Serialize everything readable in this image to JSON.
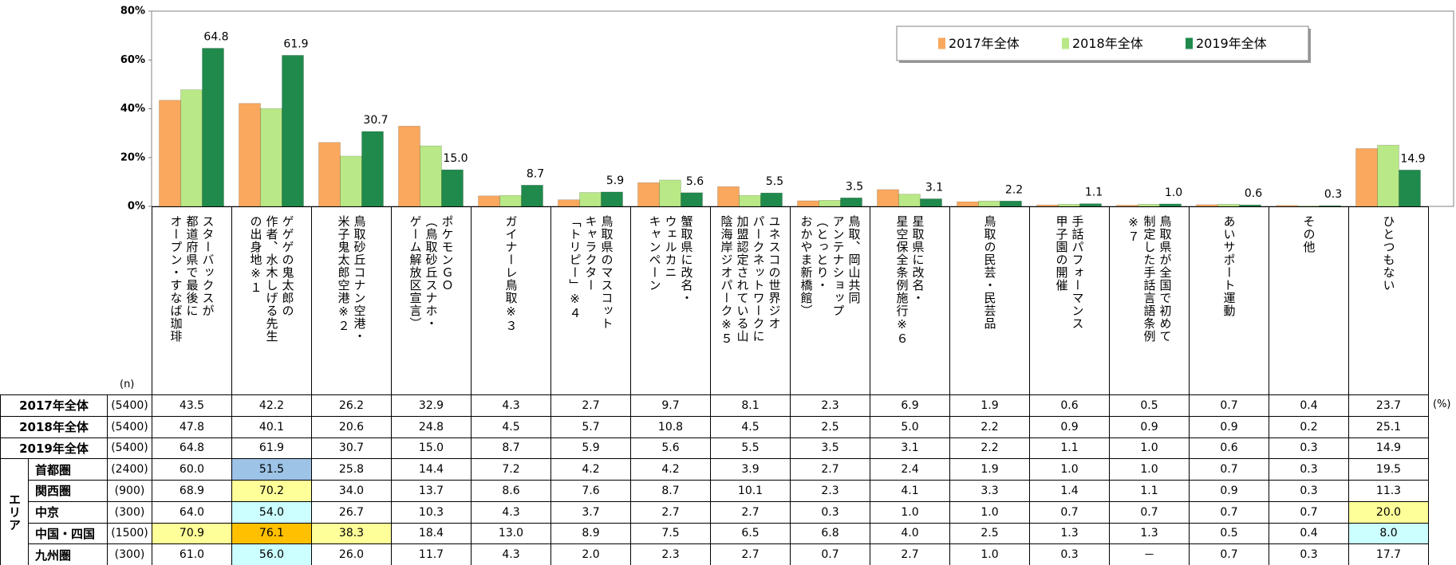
{
  "chart_data": {
    "type": "bar",
    "categories": [
      "スターバックスが\n都道府県で最後に\nオープン・すなば珈琲",
      "ゲゲゲの鬼太郎の\n作者、水木しげる先生\nの出身地※１",
      "鳥取砂丘コナン空港・\n米子鬼太郎空港※２",
      "ポケモンＧＯ\n（鳥取砂丘スナホ・\nゲーム解放区宣言）",
      "ガイナーレ鳥取※３",
      "鳥取県のマスコット\nキャラクター\n「トリピー」※４",
      "蟹取県に改名・\nウェルカニ\nキャンペーン",
      "ユネスコの世界ジオ\nパークネットワークに\n加盟認定されている山\n陰海岸ジオパーク※５",
      "鳥取、岡山共同\nアンテナショップ\n（とっとり・\nおかやま新橋館）",
      "星取県に改名・\n星空保全条例施行※６",
      "鳥取の民芸・民芸品",
      "手話パフォーマンス\n甲子園の開催",
      "鳥取県が全国で初めて\n制定した手話言語条例\n※７",
      "あいサポート運動",
      "その他",
      "ひとつもない"
    ],
    "series": [
      {
        "name": "2017年全体",
        "color": "#f9a85e",
        "show_value_labels": false,
        "values": [
          43.5,
          42.2,
          26.2,
          32.9,
          4.3,
          2.7,
          9.7,
          8.1,
          2.3,
          6.9,
          1.9,
          0.6,
          0.5,
          0.7,
          0.4,
          23.7
        ],
        "value_labels": [
          "43.5",
          "42.2",
          "26.2",
          "32.9",
          "4.3",
          "2.7",
          "9.7",
          "8.1",
          "2.3",
          "6.9",
          "1.9",
          "0.6",
          "0.5",
          "0.7",
          "0.4",
          "23.7"
        ]
      },
      {
        "name": "2018年全体",
        "color": "#b9e887",
        "show_value_labels": false,
        "values": [
          47.8,
          40.1,
          20.6,
          24.8,
          4.5,
          5.7,
          10.8,
          4.5,
          2.5,
          5.0,
          2.2,
          0.9,
          0.9,
          0.9,
          0.2,
          25.1
        ],
        "value_labels": [
          "47.8",
          "40.1",
          "20.6",
          "24.8",
          "4.5",
          "5.7",
          "10.8",
          "4.5",
          "2.5",
          "5.0",
          "2.2",
          "0.9",
          "0.9",
          "0.9",
          "0.2",
          "25.1"
        ]
      },
      {
        "name": "2019年全体",
        "color": "#1f8a4c",
        "show_value_labels": true,
        "values": [
          64.8,
          61.9,
          30.7,
          15.0,
          8.7,
          5.9,
          5.6,
          5.5,
          3.5,
          3.1,
          2.2,
          1.1,
          1.0,
          0.6,
          0.3,
          14.9
        ],
        "value_labels": [
          "64.8",
          "61.9",
          "30.7",
          "15.0",
          "8.7",
          "5.9",
          "5.6",
          "5.5",
          "3.5",
          "3.1",
          "2.2",
          "1.1",
          "1.0",
          "0.6",
          "0.3",
          "14.9"
        ]
      }
    ],
    "ylim": [
      0,
      80
    ],
    "yticks": [
      {
        "value": 0,
        "label": "0%"
      },
      {
        "value": 20,
        "label": "20%"
      },
      {
        "value": 40,
        "label": "40%"
      },
      {
        "value": 60,
        "label": "60%"
      },
      {
        "value": 80,
        "label": "80%"
      }
    ],
    "grid": false,
    "legend": "top-right"
  },
  "table": {
    "n_header": "(n)",
    "unit": "(%)",
    "summary_n": [
      "(5400)",
      "(5400)",
      "(5400)"
    ],
    "group_label": "エリア",
    "rows": [
      {
        "name": "首都圏",
        "n": "(2400)",
        "cells": [
          "60.0",
          "51.5",
          "25.8",
          "14.4",
          "7.2",
          "4.2",
          "4.2",
          "3.9",
          "2.7",
          "2.4",
          "1.9",
          "1.0",
          "1.0",
          "0.7",
          "0.3",
          "19.5"
        ],
        "cell_colors": [
          null,
          "#9dc3e6",
          null,
          null,
          null,
          null,
          null,
          null,
          null,
          null,
          null,
          null,
          null,
          null,
          null,
          null
        ]
      },
      {
        "name": "関西圏",
        "n": "(900)",
        "cells": [
          "68.9",
          "70.2",
          "34.0",
          "13.7",
          "8.6",
          "7.6",
          "8.7",
          "10.1",
          "2.3",
          "4.1",
          "3.3",
          "1.4",
          "1.1",
          "0.9",
          "0.3",
          "11.3"
        ],
        "cell_colors": [
          null,
          "#ffff99",
          null,
          null,
          null,
          null,
          null,
          null,
          null,
          null,
          null,
          null,
          null,
          null,
          null,
          null
        ]
      },
      {
        "name": "中京",
        "n": "(300)",
        "cells": [
          "64.0",
          "54.0",
          "26.7",
          "10.3",
          "4.3",
          "3.7",
          "2.7",
          "2.7",
          "0.3",
          "1.0",
          "1.0",
          "0.7",
          "0.7",
          "0.7",
          "0.7",
          "20.0"
        ],
        "cell_colors": [
          null,
          "#ccffff",
          null,
          null,
          null,
          null,
          null,
          null,
          null,
          null,
          null,
          null,
          null,
          null,
          null,
          "#ffff99"
        ]
      },
      {
        "name": "中国・四国",
        "n": "(1500)",
        "cells": [
          "70.9",
          "76.1",
          "38.3",
          "18.4",
          "13.0",
          "8.9",
          "7.5",
          "6.5",
          "6.8",
          "4.0",
          "2.5",
          "1.3",
          "1.3",
          "0.5",
          "0.4",
          "8.0"
        ],
        "cell_colors": [
          "#ffff99",
          "#ffc000",
          "#ffff99",
          null,
          null,
          null,
          null,
          null,
          null,
          null,
          null,
          null,
          null,
          null,
          null,
          "#ccffff"
        ]
      },
      {
        "name": "九州圏",
        "n": "(300)",
        "cells": [
          "61.0",
          "56.0",
          "26.0",
          "11.7",
          "4.3",
          "2.0",
          "2.3",
          "2.7",
          "0.7",
          "2.7",
          "1.0",
          "0.3",
          "－",
          "0.7",
          "0.3",
          "17.7"
        ],
        "cell_colors": [
          null,
          "#ccffff",
          null,
          null,
          null,
          null,
          null,
          null,
          null,
          null,
          null,
          null,
          null,
          null,
          null,
          null
        ]
      }
    ]
  }
}
